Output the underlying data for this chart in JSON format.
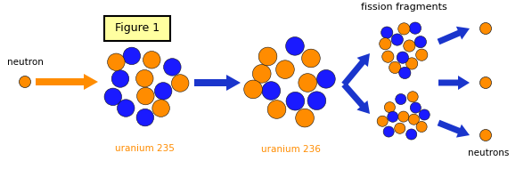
{
  "bg_color": "#ffffff",
  "orange": "#FF8C00",
  "blue": "#1a1aff",
  "arrow_blue": "#1a35cc",
  "orange_arrow": "#FF8C00",
  "text_color": "#000000",
  "label_color": "#FF8C00",
  "figure1_bg": "#FFFFA0",
  "figure1_border": "#000000",
  "title": "Figure 1",
  "label_neutron": "neutron",
  "label_u235": "uranium 235",
  "label_u236": "uranium 236",
  "label_fission": "fission fragments",
  "label_neutrons": "neutrons",
  "fig_w": 5.97,
  "fig_h": 1.9,
  "dpi": 100
}
